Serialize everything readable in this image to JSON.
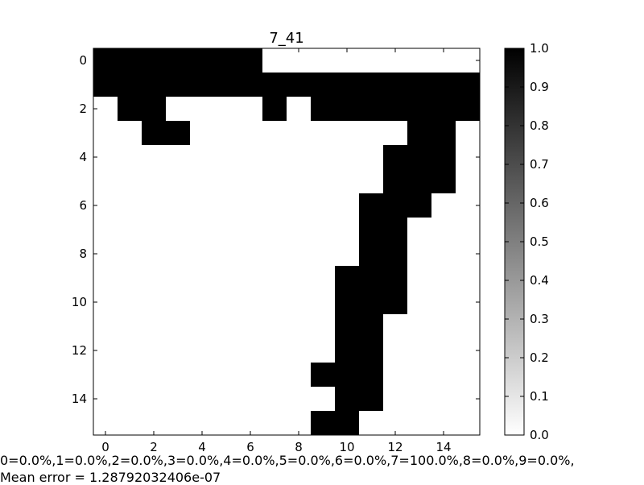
{
  "chart_data": {
    "type": "heatmap",
    "title": "7_41",
    "colormap": "gray_r",
    "xlim": [
      -0.5,
      15.5
    ],
    "ylim": [
      15.5,
      -0.5
    ],
    "x_ticks": [
      0,
      2,
      4,
      6,
      8,
      10,
      12,
      14
    ],
    "y_ticks": [
      0,
      2,
      4,
      6,
      8,
      10,
      12,
      14
    ],
    "colorbar": {
      "range": [
        0.0,
        1.0
      ],
      "ticks": [
        "0.0",
        "0.1",
        "0.2",
        "0.3",
        "0.4",
        "0.5",
        "0.6",
        "0.7",
        "0.8",
        "0.9",
        "1.0"
      ]
    },
    "matrix": [
      [
        1,
        1,
        1,
        1,
        1,
        1,
        1,
        0,
        0,
        0,
        0,
        0,
        0,
        0,
        0,
        0
      ],
      [
        1,
        1,
        1,
        1,
        1,
        1,
        1,
        1,
        1,
        1,
        1,
        1,
        1,
        1,
        1,
        1
      ],
      [
        0,
        1,
        1,
        0,
        0,
        0,
        0,
        1,
        0,
        1,
        1,
        1,
        1,
        1,
        1,
        1
      ],
      [
        0,
        0,
        1,
        1,
        0,
        0,
        0,
        0,
        0,
        0,
        0,
        0,
        0,
        1,
        1,
        0
      ],
      [
        0,
        0,
        0,
        0,
        0,
        0,
        0,
        0,
        0,
        0,
        0,
        0,
        1,
        1,
        1,
        0
      ],
      [
        0,
        0,
        0,
        0,
        0,
        0,
        0,
        0,
        0,
        0,
        0,
        0,
        1,
        1,
        1,
        0
      ],
      [
        0,
        0,
        0,
        0,
        0,
        0,
        0,
        0,
        0,
        0,
        0,
        1,
        1,
        1,
        0,
        0
      ],
      [
        0,
        0,
        0,
        0,
        0,
        0,
        0,
        0,
        0,
        0,
        0,
        1,
        1,
        0,
        0,
        0
      ],
      [
        0,
        0,
        0,
        0,
        0,
        0,
        0,
        0,
        0,
        0,
        0,
        1,
        1,
        0,
        0,
        0
      ],
      [
        0,
        0,
        0,
        0,
        0,
        0,
        0,
        0,
        0,
        0,
        1,
        1,
        1,
        0,
        0,
        0
      ],
      [
        0,
        0,
        0,
        0,
        0,
        0,
        0,
        0,
        0,
        0,
        1,
        1,
        1,
        0,
        0,
        0
      ],
      [
        0,
        0,
        0,
        0,
        0,
        0,
        0,
        0,
        0,
        0,
        1,
        1,
        0,
        0,
        0,
        0
      ],
      [
        0,
        0,
        0,
        0,
        0,
        0,
        0,
        0,
        0,
        0,
        1,
        1,
        0,
        0,
        0,
        0
      ],
      [
        0,
        0,
        0,
        0,
        0,
        0,
        0,
        0,
        0,
        1,
        1,
        1,
        0,
        0,
        0,
        0
      ],
      [
        0,
        0,
        0,
        0,
        0,
        0,
        0,
        0,
        0,
        0,
        1,
        1,
        0,
        0,
        0,
        0
      ],
      [
        0,
        0,
        0,
        0,
        0,
        0,
        0,
        0,
        0,
        1,
        1,
        0,
        0,
        0,
        0,
        0
      ]
    ]
  },
  "captions": {
    "line1": "0=0.0%,1=0.0%,2=0.0%,3=0.0%,4=0.0%,5=0.0%,6=0.0%,7=100.0%,8=0.0%,9=0.0%,",
    "line2": "Mean error = 1.28792032406e-07"
  }
}
